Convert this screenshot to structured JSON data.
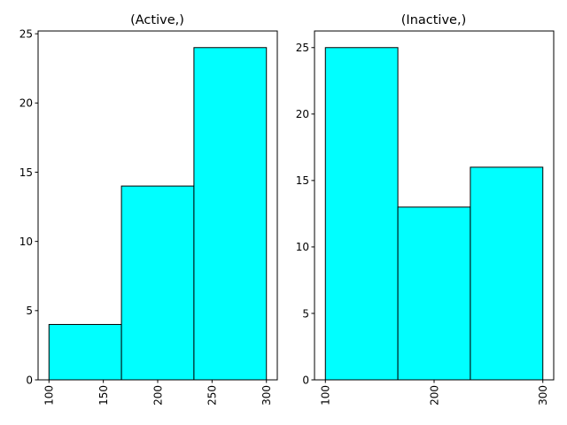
{
  "chart_data": [
    {
      "type": "bar",
      "title": "(Active,)",
      "bin_edges": [
        100,
        166.67,
        233.33,
        300
      ],
      "values": [
        4,
        14,
        24
      ],
      "xlabel": "",
      "ylabel": "",
      "xlim": [
        90,
        310
      ],
      "ylim": [
        0,
        25.2
      ],
      "xticks": [
        100,
        150,
        200,
        250,
        300
      ],
      "yticks": [
        0,
        5,
        10,
        15,
        20,
        25
      ],
      "xtick_rotation": "vertical",
      "bar_color": "#00ffff",
      "edge_color": "#000000",
      "grid": false
    },
    {
      "type": "bar",
      "title": "(Inactive,)",
      "bin_edges": [
        100,
        166.67,
        233.33,
        300
      ],
      "values": [
        25,
        13,
        16
      ],
      "xlabel": "",
      "ylabel": "",
      "xlim": [
        90,
        310
      ],
      "ylim": [
        0,
        26.25
      ],
      "xticks": [
        100,
        200,
        300
      ],
      "yticks": [
        0,
        5,
        10,
        15,
        20,
        25
      ],
      "xtick_rotation": "vertical",
      "bar_color": "#00ffff",
      "edge_color": "#000000",
      "grid": false
    }
  ]
}
